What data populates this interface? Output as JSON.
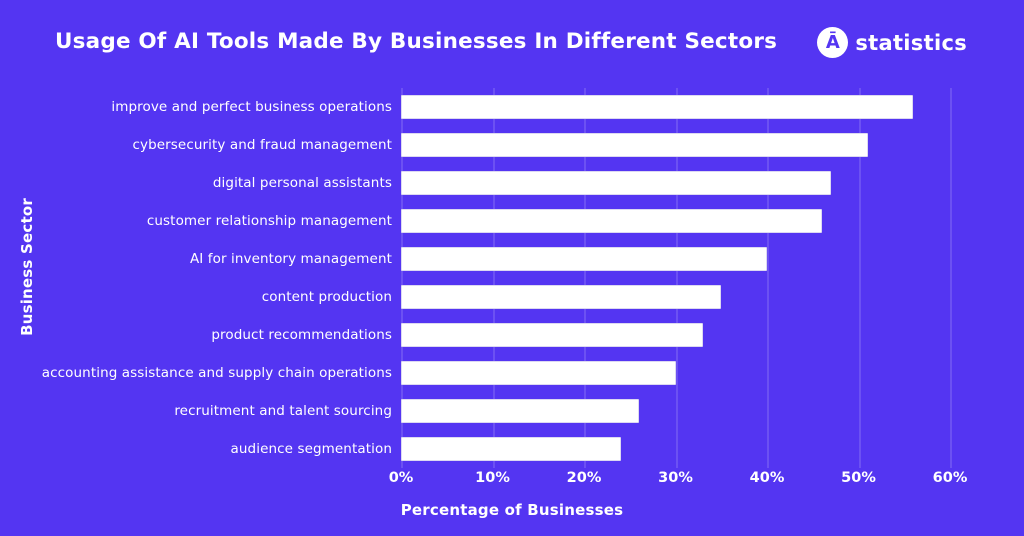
{
  "header": {
    "title": "Usage Of AI Tools Made By Businesses In Different Sectors",
    "logo": {
      "icon_letter": "Ā",
      "brand": "statistics"
    }
  },
  "chart_data": {
    "type": "bar",
    "orientation": "horizontal",
    "title": "Usage Of AI Tools Made By Businesses In Different Sectors",
    "categories": [
      "improve and perfect business operations",
      "cybersecurity and fraud management",
      "digital personal assistants",
      "customer relationship management",
      "AI for inventory management",
      "content production",
      "product recommendations",
      "accounting assistance and supply chain operations",
      "recruitment and talent sourcing",
      "audience segmentation"
    ],
    "values": [
      56,
      51,
      47,
      46,
      40,
      35,
      33,
      30,
      26,
      24
    ],
    "unit": "%",
    "xlabel": "Percentage of Businesses",
    "ylabel": "Business Sector",
    "xlim": [
      0,
      60
    ],
    "xtick_step": 10,
    "xticks": [
      "0%",
      "10%",
      "20%",
      "30%",
      "40%",
      "50%",
      "60%"
    ],
    "grid": true,
    "legend": false,
    "colors": {
      "background": "#5435F2",
      "bar_fill": "#FFFFFF",
      "bar_border": "#DCD8F2",
      "text": "#FFFFFF",
      "gridline": "rgba(255,255,255,0.14)"
    }
  }
}
